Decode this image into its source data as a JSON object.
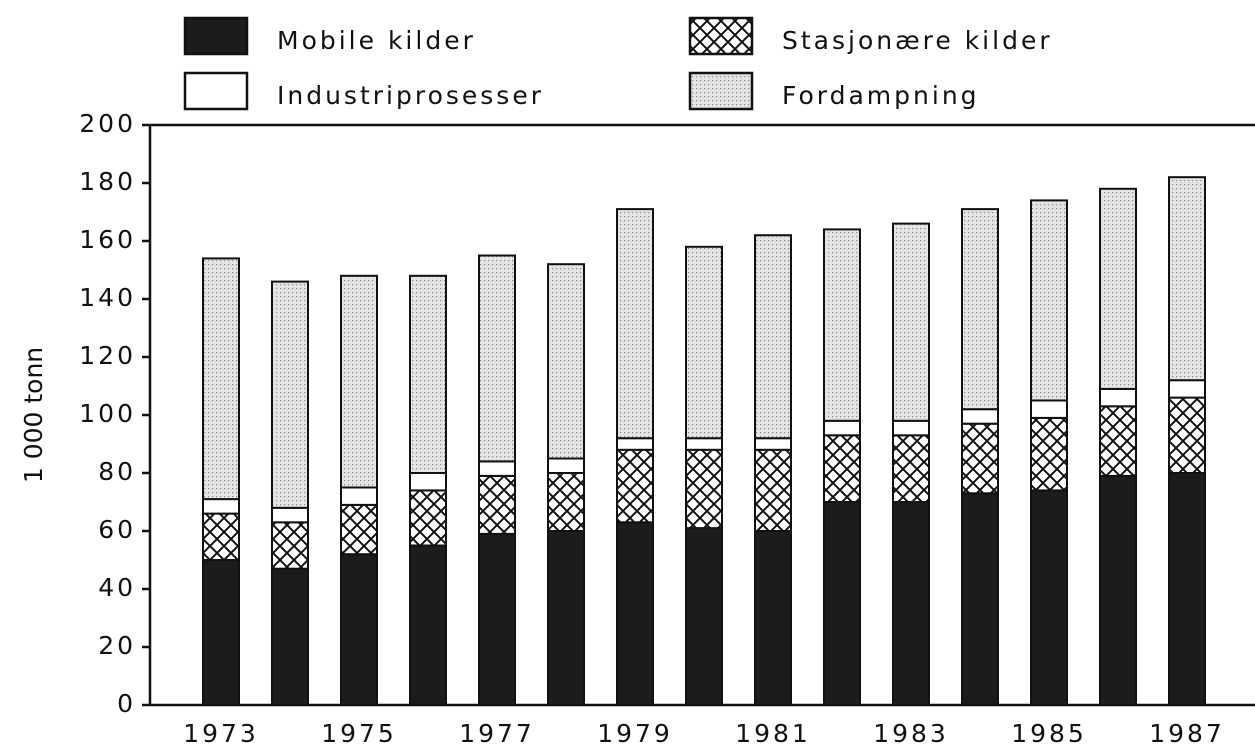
{
  "chart_data": {
    "type": "stacked_bar",
    "y_label": "1 000 tonn",
    "categories": [
      "1973",
      null,
      "1975",
      null,
      "1977",
      null,
      "1979",
      null,
      "1981",
      null,
      "1983",
      null,
      "1985",
      null,
      "1987"
    ],
    "series": [
      {
        "name": "Mobile kilder",
        "color": "#1c1c1c",
        "pattern": "solid",
        "values": [
          50,
          47,
          52,
          55,
          59,
          60,
          63,
          61,
          60,
          70,
          70,
          73,
          74,
          79,
          80
        ]
      },
      {
        "name": "Stasjonære kilder",
        "color": "#ffffff",
        "pattern": "crosshatch",
        "values": [
          16,
          16,
          17,
          19,
          20,
          20,
          25,
          27,
          28,
          23,
          23,
          24,
          25,
          24,
          26
        ]
      },
      {
        "name": "Industriprosesser",
        "color": "#ffffff",
        "pattern": "solid",
        "values": [
          5,
          5,
          6,
          6,
          5,
          5,
          4,
          4,
          4,
          5,
          5,
          5,
          6,
          6,
          6
        ]
      },
      {
        "name": "Fordampning",
        "color": "#dcdcdc",
        "pattern": "dotted",
        "values": [
          83,
          78,
          73,
          68,
          71,
          67,
          79,
          66,
          70,
          66,
          68,
          69,
          69,
          69,
          70
        ]
      }
    ],
    "ylim": [
      0,
      200
    ],
    "yticks": [
      0,
      20,
      40,
      60,
      80,
      100,
      120,
      140,
      160,
      180,
      200
    ]
  }
}
